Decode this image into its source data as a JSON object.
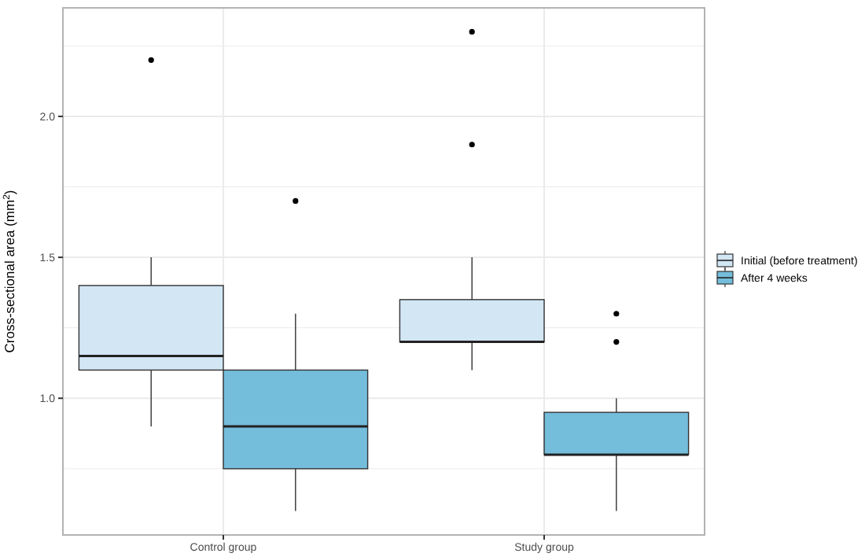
{
  "chart_data": {
    "type": "box",
    "ylabel": "Cross-sectional area (mm$^{2}$)",
    "categories": [
      "Control group",
      "Study group"
    ],
    "series": [
      {
        "name": "Initial (before treatment)",
        "color": "#d2e6f4",
        "boxes": [
          {
            "low": 0.9,
            "q1": 1.1,
            "median": 1.15,
            "q3": 1.4,
            "high": 1.5,
            "outliers": [
              2.2
            ]
          },
          {
            "low": 1.1,
            "q1": 1.2,
            "median": 1.2,
            "q3": 1.35,
            "high": 1.5,
            "outliers": [
              1.9,
              2.3
            ]
          }
        ]
      },
      {
        "name": "After 4 weeks",
        "color": "#74bddb",
        "boxes": [
          {
            "low": 0.6,
            "q1": 0.75,
            "median": 0.9,
            "q3": 1.1,
            "high": 1.3,
            "outliers": [
              1.7
            ]
          },
          {
            "low": 0.6,
            "q1": 0.8,
            "median": 0.8,
            "q3": 0.95,
            "high": 1.0,
            "outliers": [
              1.2,
              1.3
            ]
          }
        ]
      }
    ],
    "ylim": [
      0.515,
      2.385
    ],
    "yticks": [
      {
        "value": 0.75,
        "label": null
      },
      {
        "value": 1.0,
        "label": "1.0"
      },
      {
        "value": 1.25,
        "label": null
      },
      {
        "value": 1.5,
        "label": "1.5"
      },
      {
        "value": 1.75,
        "label": null
      },
      {
        "value": 2.0,
        "label": "2.0"
      },
      {
        "value": 2.25,
        "label": null
      }
    ],
    "grid": true,
    "legend": "right"
  }
}
